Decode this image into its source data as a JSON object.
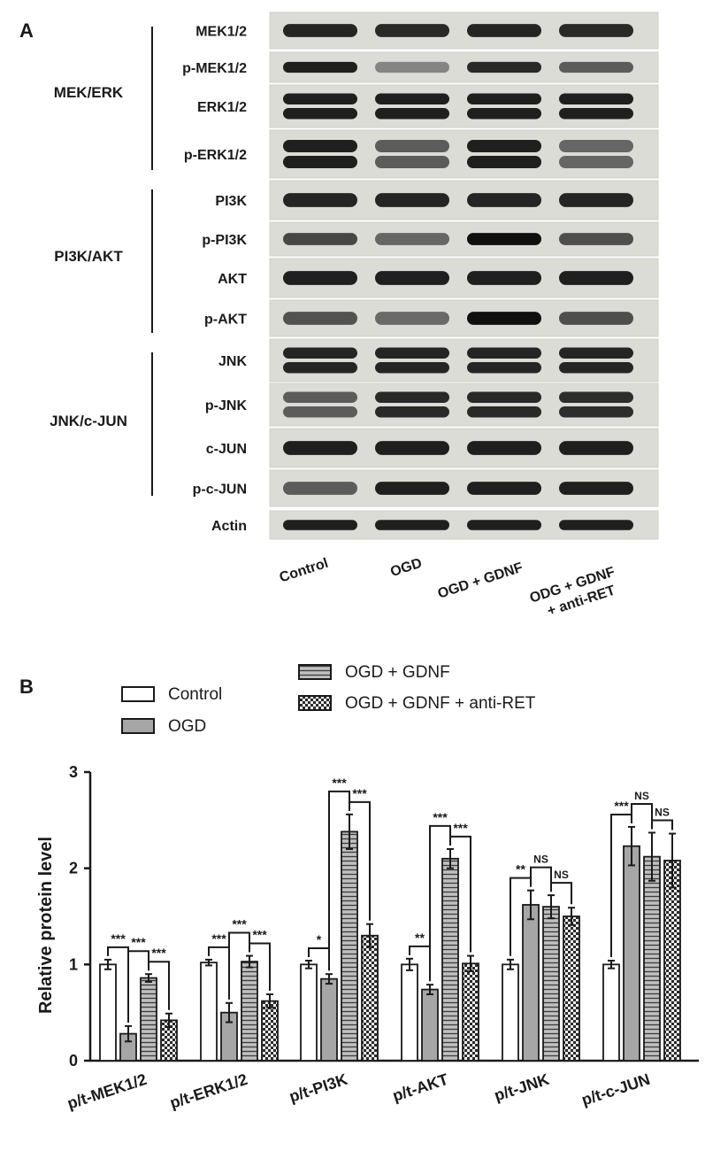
{
  "panel_a": {
    "letter": "A",
    "groups": [
      {
        "label": "MEK/ERK"
      },
      {
        "label": "PI3K/AKT"
      },
      {
        "label": "JNK/c-JUN"
      }
    ],
    "proteins": [
      {
        "label": "MEK1/2",
        "bands": [
          0.82,
          0.8,
          0.82,
          0.8
        ],
        "double": false
      },
      {
        "label": "p-MEK1/2",
        "bands": [
          0.85,
          0.35,
          0.8,
          0.55
        ],
        "double": false
      },
      {
        "label": "ERK1/2",
        "bands": [
          0.85,
          0.85,
          0.85,
          0.85
        ],
        "double": true
      },
      {
        "label": "p-ERK1/2",
        "bands": [
          0.85,
          0.55,
          0.85,
          0.5
        ],
        "double": true
      },
      {
        "label": "PI3K",
        "bands": [
          0.82,
          0.82,
          0.82,
          0.82
        ],
        "double": false
      },
      {
        "label": "p-PI3K",
        "bands": [
          0.65,
          0.5,
          0.92,
          0.62
        ],
        "double": false
      },
      {
        "label": "AKT",
        "bands": [
          0.85,
          0.85,
          0.85,
          0.85
        ],
        "double": false
      },
      {
        "label": "p-AKT",
        "bands": [
          0.6,
          0.48,
          0.92,
          0.62
        ],
        "double": false
      },
      {
        "label": "JNK",
        "bands": [
          0.82,
          0.82,
          0.82,
          0.82
        ],
        "double": true
      },
      {
        "label": "p-JNK",
        "bands": [
          0.55,
          0.8,
          0.8,
          0.78
        ],
        "double": true
      },
      {
        "label": "c-JUN",
        "bands": [
          0.85,
          0.85,
          0.85,
          0.85
        ],
        "double": false
      },
      {
        "label": "p-c-JUN",
        "bands": [
          0.55,
          0.85,
          0.85,
          0.85
        ],
        "double": false
      },
      {
        "label": "Actin",
        "bands": [
          0.85,
          0.85,
          0.85,
          0.85
        ],
        "double": false
      }
    ],
    "lanes": [
      {
        "line1": "Control",
        "line2": ""
      },
      {
        "line1": "OGD",
        "line2": ""
      },
      {
        "line1": "OGD + GDNF",
        "line2": ""
      },
      {
        "line1": "ODG + GDNF",
        "line2": "+ anti-RET"
      }
    ]
  },
  "panel_b": {
    "letter": "B",
    "legend": [
      {
        "label": "Control",
        "pattern": "white"
      },
      {
        "label": "OGD",
        "pattern": "gray"
      },
      {
        "label": "OGD + GDNF",
        "pattern": "hlines"
      },
      {
        "label": "OGD + GDNF + anti-RET",
        "pattern": "checker"
      }
    ]
  },
  "chart_data": {
    "type": "bar",
    "title": "",
    "xlabel": "",
    "ylabel": "Relative protein level",
    "ylim": [
      0,
      3
    ],
    "yticks": [
      "0",
      "1",
      "2",
      "3"
    ],
    "categories": [
      "p/t-MEK1/2",
      "p/t-ERK1/2",
      "p/t-PI3K",
      "p/t-AKT",
      "p/t-JNK",
      "p/t-c-JUN"
    ],
    "series": [
      {
        "name": "Control",
        "values": [
          1.0,
          1.02,
          1.0,
          1.0,
          1.0,
          1.0
        ],
        "errors": [
          0.05,
          0.03,
          0.04,
          0.06,
          0.05,
          0.04
        ]
      },
      {
        "name": "OGD",
        "values": [
          0.28,
          0.5,
          0.85,
          0.74,
          1.62,
          2.23
        ],
        "errors": [
          0.08,
          0.1,
          0.05,
          0.05,
          0.15,
          0.2
        ]
      },
      {
        "name": "OGD + GDNF",
        "values": [
          0.86,
          1.03,
          2.38,
          2.1,
          1.6,
          2.12
        ],
        "errors": [
          0.04,
          0.06,
          0.18,
          0.1,
          0.12,
          0.25
        ]
      },
      {
        "name": "OGD + GDNF + anti-RET",
        "values": [
          0.42,
          0.62,
          1.3,
          1.01,
          1.5,
          2.08
        ],
        "errors": [
          0.07,
          0.07,
          0.12,
          0.08,
          0.09,
          0.28
        ]
      }
    ],
    "significance": [
      {
        "category": 0,
        "labels": [
          "***",
          "***",
          "***"
        ]
      },
      {
        "category": 1,
        "labels": [
          "***",
          "***",
          "***"
        ]
      },
      {
        "category": 2,
        "labels": [
          "*",
          "***",
          "***"
        ]
      },
      {
        "category": 3,
        "labels": [
          "**",
          "***",
          "***"
        ]
      },
      {
        "category": 4,
        "labels": [
          "**",
          "NS",
          "NS"
        ]
      },
      {
        "category": 5,
        "labels": [
          "***",
          "NS",
          "NS"
        ]
      }
    ],
    "grid": false,
    "legend_position": "top"
  }
}
